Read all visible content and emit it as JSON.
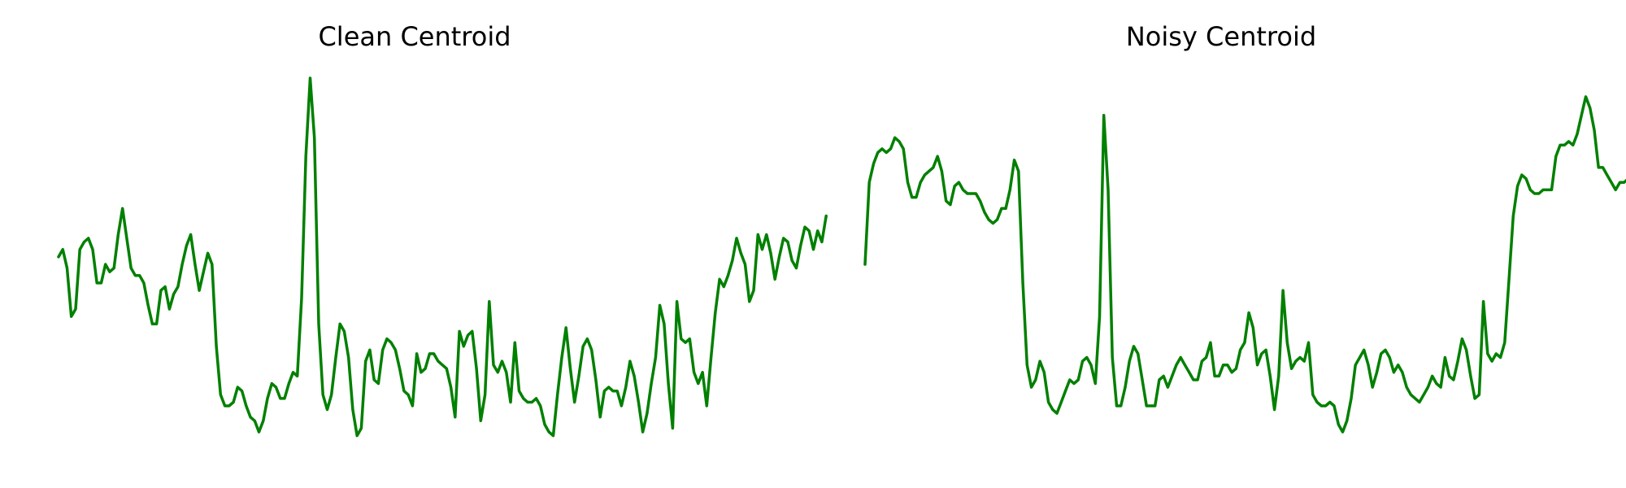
{
  "figure": {
    "line_color": "#008000"
  },
  "chart_data": [
    {
      "type": "line",
      "title": "Clean Centroid",
      "axes_visible": false,
      "grid": false,
      "legend": "none",
      "xlim": [
        0,
        167
      ],
      "ylim": [
        0,
        1
      ],
      "series": [
        {
          "color": "#008000",
          "values": [
            0.52,
            0.54,
            0.49,
            0.36,
            0.38,
            0.54,
            0.56,
            0.57,
            0.54,
            0.45,
            0.45,
            0.5,
            0.48,
            0.49,
            0.58,
            0.65,
            0.57,
            0.49,
            0.47,
            0.47,
            0.45,
            0.39,
            0.34,
            0.34,
            0.43,
            0.44,
            0.38,
            0.42,
            0.44,
            0.5,
            0.55,
            0.58,
            0.5,
            0.43,
            0.48,
            0.53,
            0.5,
            0.28,
            0.15,
            0.12,
            0.12,
            0.13,
            0.17,
            0.16,
            0.12,
            0.09,
            0.08,
            0.05,
            0.08,
            0.14,
            0.18,
            0.17,
            0.14,
            0.14,
            0.18,
            0.21,
            0.2,
            0.41,
            0.79,
            1.0,
            0.84,
            0.34,
            0.15,
            0.11,
            0.15,
            0.25,
            0.34,
            0.32,
            0.25,
            0.11,
            0.04,
            0.06,
            0.24,
            0.27,
            0.19,
            0.18,
            0.27,
            0.3,
            0.29,
            0.27,
            0.22,
            0.16,
            0.15,
            0.12,
            0.26,
            0.21,
            0.22,
            0.26,
            0.26,
            0.24,
            0.23,
            0.22,
            0.17,
            0.09,
            0.32,
            0.28,
            0.31,
            0.32,
            0.22,
            0.08,
            0.15,
            0.4,
            0.23,
            0.21,
            0.24,
            0.21,
            0.13,
            0.29,
            0.16,
            0.14,
            0.13,
            0.13,
            0.14,
            0.12,
            0.07,
            0.05,
            0.04,
            0.15,
            0.25,
            0.33,
            0.22,
            0.13,
            0.2,
            0.28,
            0.3,
            0.27,
            0.19,
            0.09,
            0.16,
            0.17,
            0.16,
            0.16,
            0.12,
            0.17,
            0.24,
            0.2,
            0.13,
            0.05,
            0.1,
            0.18,
            0.25,
            0.39,
            0.34,
            0.18,
            0.06,
            0.4,
            0.3,
            0.29,
            0.3,
            0.21,
            0.18,
            0.21,
            0.12,
            0.25,
            0.37,
            0.46,
            0.44,
            0.47,
            0.51,
            0.57,
            0.53,
            0.5,
            0.4,
            0.43,
            0.58,
            0.54,
            0.58,
            0.53,
            0.46,
            0.52,
            0.57,
            0.56,
            0.51,
            0.49,
            0.55,
            0.6,
            0.59,
            0.54,
            0.59,
            0.56,
            0.63
          ]
        }
      ]
    },
    {
      "type": "line",
      "title": "Noisy Centroid",
      "axes_visible": false,
      "grid": false,
      "legend": "none",
      "xlim": [
        0,
        167
      ],
      "ylim": [
        0,
        1
      ],
      "series": [
        {
          "color": "#008000",
          "values": [
            0.5,
            0.72,
            0.77,
            0.8,
            0.81,
            0.8,
            0.81,
            0.84,
            0.83,
            0.81,
            0.72,
            0.68,
            0.68,
            0.72,
            0.74,
            0.75,
            0.76,
            0.79,
            0.75,
            0.67,
            0.66,
            0.71,
            0.72,
            0.7,
            0.69,
            0.69,
            0.69,
            0.67,
            0.64,
            0.62,
            0.61,
            0.62,
            0.65,
            0.65,
            0.7,
            0.78,
            0.75,
            0.45,
            0.23,
            0.17,
            0.19,
            0.24,
            0.21,
            0.13,
            0.11,
            0.1,
            0.13,
            0.16,
            0.19,
            0.18,
            0.19,
            0.24,
            0.25,
            0.23,
            0.18,
            0.36,
            0.9,
            0.7,
            0.25,
            0.12,
            0.12,
            0.17,
            0.24,
            0.28,
            0.26,
            0.19,
            0.12,
            0.12,
            0.12,
            0.19,
            0.2,
            0.17,
            0.2,
            0.23,
            0.25,
            0.23,
            0.21,
            0.19,
            0.19,
            0.24,
            0.25,
            0.29,
            0.2,
            0.2,
            0.23,
            0.23,
            0.21,
            0.22,
            0.27,
            0.29,
            0.37,
            0.33,
            0.23,
            0.26,
            0.27,
            0.2,
            0.11,
            0.2,
            0.43,
            0.29,
            0.22,
            0.24,
            0.25,
            0.24,
            0.29,
            0.15,
            0.13,
            0.12,
            0.12,
            0.13,
            0.12,
            0.07,
            0.05,
            0.08,
            0.14,
            0.23,
            0.25,
            0.27,
            0.23,
            0.17,
            0.21,
            0.26,
            0.27,
            0.25,
            0.21,
            0.23,
            0.21,
            0.17,
            0.15,
            0.14,
            0.13,
            0.15,
            0.17,
            0.2,
            0.18,
            0.17,
            0.25,
            0.2,
            0.19,
            0.24,
            0.3,
            0.27,
            0.2,
            0.14,
            0.15,
            0.4,
            0.26,
            0.24,
            0.26,
            0.25,
            0.29,
            0.46,
            0.63,
            0.71,
            0.74,
            0.73,
            0.7,
            0.69,
            0.69,
            0.7,
            0.7,
            0.7,
            0.79,
            0.82,
            0.82,
            0.83,
            0.82,
            0.85,
            0.9,
            0.95,
            0.92,
            0.86,
            0.76,
            0.76,
            0.74,
            0.72,
            0.7,
            0.72,
            0.72,
            0.73
          ]
        }
      ]
    }
  ]
}
